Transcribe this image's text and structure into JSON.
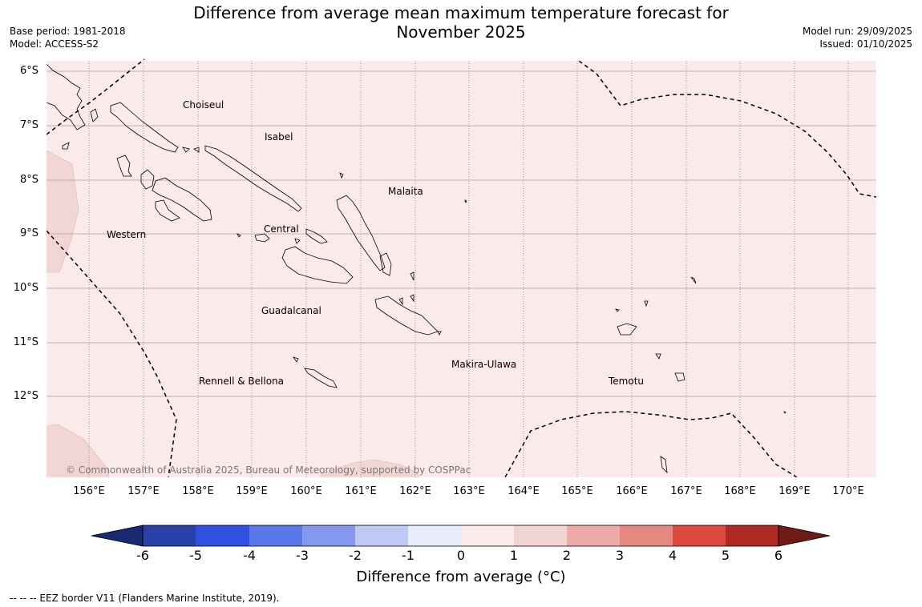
{
  "header": {
    "title_line1": "Difference from average mean maximum temperature forecast for",
    "title_line2": "November 2025",
    "base_period": "Base period: 1981-2018",
    "model": "Model: ACCESS-S2",
    "model_run": "Model run: 29/09/2025",
    "issued": "Issued: 01/10/2025"
  },
  "map": {
    "background_color": "#fbeaea",
    "warm_patch_color": "#f2d6d4",
    "latitude_labels": [
      "6°S",
      "7°S",
      "8°S",
      "9°S",
      "10°S",
      "11°S",
      "12°S"
    ],
    "longitude_labels": [
      "156°E",
      "157°E",
      "158°E",
      "159°E",
      "160°E",
      "161°E",
      "162°E",
      "163°E",
      "164°E",
      "165°E",
      "166°E",
      "167°E",
      "168°E",
      "169°E",
      "170°E"
    ],
    "regions": [
      "Choiseul",
      "Isabel",
      "Malaita",
      "Western",
      "Central",
      "Guadalcanal",
      "Makira-Ulawa",
      "Rennell & Bellona",
      "Temotu"
    ],
    "copyright": "© Commonwealth of Australia 2025, Bureau of Meteorology, supported by COSPPac"
  },
  "colorbar": {
    "ticks": [
      "-6",
      "-5",
      "-4",
      "-3",
      "-2",
      "-1",
      "0",
      "1",
      "2",
      "3",
      "4",
      "5",
      "6"
    ],
    "colors": [
      "#2840a8",
      "#3050e0",
      "#5a78e8",
      "#8498ee",
      "#c0c8f4",
      "#e8ecfb",
      "#fceaea",
      "#f2d4d2",
      "#eeaaa8",
      "#e68880",
      "#de4a40",
      "#ae2a22"
    ],
    "extend_low_color": "#1a2a70",
    "extend_high_color": "#6e1a16",
    "label": "Difference from average (°C)"
  },
  "footer": {
    "eez_note": "--  --  -- EEZ border V11 (Flanders Marine Institute, 2019)."
  }
}
